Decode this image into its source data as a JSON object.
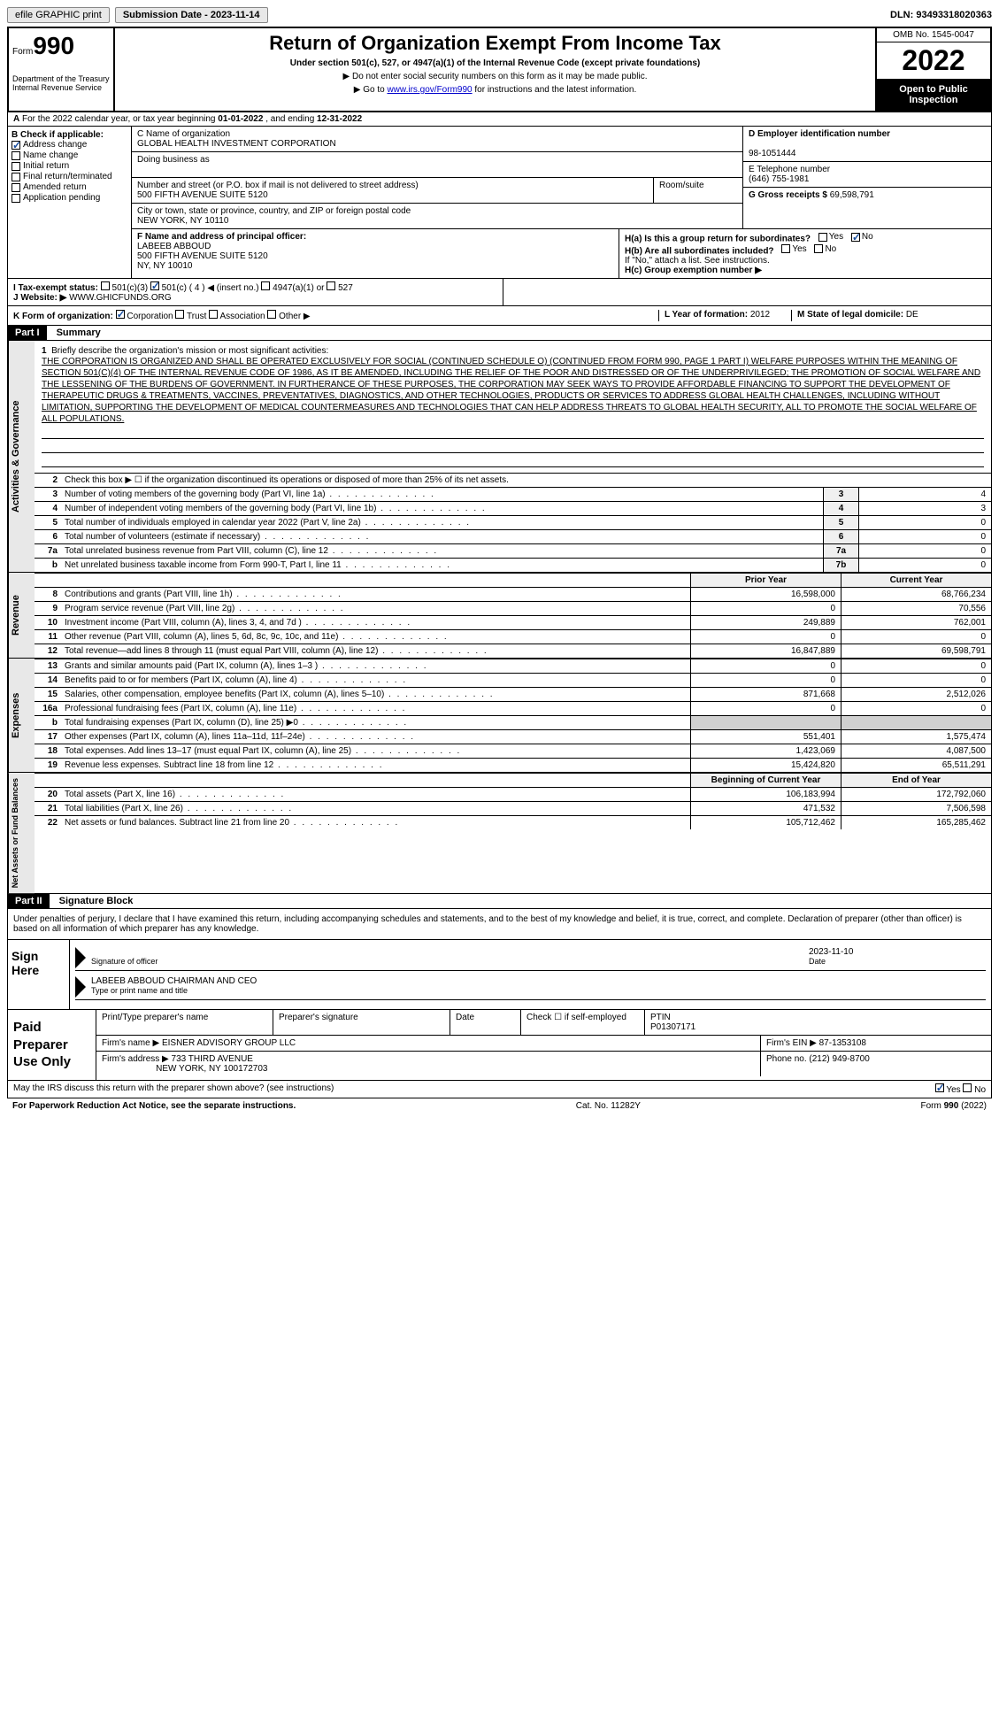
{
  "topbar": {
    "efile": "efile GRAPHIC print",
    "submission_label": "Submission Date - 2023-11-14",
    "dln": "DLN: 93493318020363"
  },
  "header": {
    "form_prefix": "Form",
    "form_num": "990",
    "title": "Return of Organization Exempt From Income Tax",
    "subtitle": "Under section 501(c), 527, or 4947(a)(1) of the Internal Revenue Code (except private foundations)",
    "note1": "▶ Do not enter social security numbers on this form as it may be made public.",
    "note2_pre": "▶ Go to ",
    "note2_link": "www.irs.gov/Form990",
    "note2_post": " for instructions and the latest information.",
    "dept": "Department of the Treasury Internal Revenue Service",
    "omb": "OMB No. 1545-0047",
    "year": "2022",
    "inspect": "Open to Public Inspection"
  },
  "row_a": {
    "a_label": "A",
    "text_pre": "For the 2022 calendar year, or tax year beginning ",
    "begin": "01-01-2022",
    "mid": " , and ending ",
    "end": "12-31-2022"
  },
  "col_b": {
    "header": "B Check if applicable:",
    "items": [
      {
        "label": "Address change",
        "checked": true
      },
      {
        "label": "Name change",
        "checked": false
      },
      {
        "label": "Initial return",
        "checked": false
      },
      {
        "label": "Final return/terminated",
        "checked": false
      },
      {
        "label": "Amended return",
        "checked": false
      },
      {
        "label": "Application pending",
        "checked": false
      }
    ]
  },
  "block_c": {
    "c_label": "C Name of organization",
    "org_name": "GLOBAL HEALTH INVESTMENT CORPORATION",
    "dba_label": "Doing business as",
    "dba": "",
    "street_label": "Number and street (or P.O. box if mail is not delivered to street address)",
    "street": "500 FIFTH AVENUE SUITE 5120",
    "room_label": "Room/suite",
    "room": "",
    "city_label": "City or town, state or province, country, and ZIP or foreign postal code",
    "city": "NEW YORK, NY  10110"
  },
  "block_d": {
    "label": "D Employer identification number",
    "value": "98-1051444"
  },
  "block_e": {
    "label": "E Telephone number",
    "value": "(646) 755-1981"
  },
  "block_g": {
    "label": "G Gross receipts $ ",
    "value": "69,598,791"
  },
  "block_f": {
    "label": "F Name and address of principal officer:",
    "name": "LABEEB ABBOUD",
    "addr1": "500 FIFTH AVENUE SUITE 5120",
    "addr2": "NY, NY  10010"
  },
  "block_h": {
    "ha_label": "H(a)  Is this a group return for subordinates?",
    "ha_yes": false,
    "ha_no": true,
    "hb_label": "H(b)  Are all subordinates included?",
    "hb_yes": false,
    "hb_no": false,
    "hb_note": "If \"No,\" attach a list. See instructions.",
    "hc_label": "H(c)  Group exemption number ▶",
    "hc_val": ""
  },
  "row_i": {
    "label": "I   Tax-exempt status:",
    "c501c3": false,
    "c501c": true,
    "c501c_num": "4",
    "c501c_note": "◀ (insert no.)",
    "c4947": false,
    "c4947_label": "4947(a)(1) or",
    "c527": false,
    "c527_label": "527"
  },
  "row_j": {
    "label": "J   Website: ▶",
    "value": "WWW.GHICFUNDS.ORG"
  },
  "row_k": {
    "label": "K Form of organization:",
    "corp": true,
    "corp_l": "Corporation",
    "trust": false,
    "trust_l": "Trust",
    "assoc": false,
    "assoc_l": "Association",
    "other": false,
    "other_l": "Other ▶",
    "l_label": "L Year of formation: ",
    "l_val": "2012",
    "m_label": "M State of legal domicile: ",
    "m_val": "DE"
  },
  "part1": {
    "part_label": "Part I",
    "title": "Summary",
    "line1_label": "Briefly describe the organization's mission or most significant activities:",
    "mission": "THE CORPORATION IS ORGANIZED AND SHALL BE OPERATED EXCLUSIVELY FOR SOCIAL (CONTINUED SCHEDULE O) (CONTINUED FROM FORM 990, PAGE 1 PART I) WELFARE PURPOSES WITHIN THE MEANING OF SECTION 501(C)(4) OF THE INTERNAL REVENUE CODE OF 1986, AS IT BE AMENDED, INCLUDING THE RELIEF OF THE POOR AND DISTRESSED OR OF THE UNDERPRIVILEGED; THE PROMOTION OF SOCIAL WELFARE AND THE LESSENING OF THE BURDENS OF GOVERNMENT. IN FURTHERANCE OF THESE PURPOSES, THE CORPORATION MAY SEEK WAYS TO PROVIDE AFFORDABLE FINANCING TO SUPPORT THE DEVELOPMENT OF THERAPEUTIC DRUGS & TREATMENTS, VACCINES, PREVENTATIVES, DIAGNOSTICS, AND OTHER TECHNOLOGIES, PRODUCTS OR SERVICES TO ADDRESS GLOBAL HEALTH CHALLENGES, INCLUDING WITHOUT LIMITATION, SUPPORTING THE DEVELOPMENT OF MEDICAL COUNTERMEASURES AND TECHNOLOGIES THAT CAN HELP ADDRESS THREATS TO GLOBAL HEALTH SECURITY, ALL TO PROMOTE THE SOCIAL WELFARE OF ALL POPULATIONS.",
    "line2": "Check this box ▶ ☐ if the organization discontinued its operations or disposed of more than 25% of its net assets.",
    "rows_boxed": [
      {
        "n": "3",
        "label": "Number of voting members of the governing body (Part VI, line 1a)",
        "box": "3",
        "val": "4"
      },
      {
        "n": "4",
        "label": "Number of independent voting members of the governing body (Part VI, line 1b)",
        "box": "4",
        "val": "3"
      },
      {
        "n": "5",
        "label": "Total number of individuals employed in calendar year 2022 (Part V, line 2a)",
        "box": "5",
        "val": "0"
      },
      {
        "n": "6",
        "label": "Total number of volunteers (estimate if necessary)",
        "box": "6",
        "val": "0"
      },
      {
        "n": "7a",
        "label": "Total unrelated business revenue from Part VIII, column (C), line 12",
        "box": "7a",
        "val": "0"
      },
      {
        "n": "b",
        "label": "Net unrelated business taxable income from Form 990-T, Part I, line 11",
        "box": "7b",
        "val": "0"
      }
    ],
    "col_prior": "Prior Year",
    "col_current": "Current Year"
  },
  "revenue": {
    "strip": "Revenue",
    "rows": [
      {
        "n": "8",
        "label": "Contributions and grants (Part VIII, line 1h)",
        "prior": "16,598,000",
        "curr": "68,766,234"
      },
      {
        "n": "9",
        "label": "Program service revenue (Part VIII, line 2g)",
        "prior": "0",
        "curr": "70,556"
      },
      {
        "n": "10",
        "label": "Investment income (Part VIII, column (A), lines 3, 4, and 7d )",
        "prior": "249,889",
        "curr": "762,001"
      },
      {
        "n": "11",
        "label": "Other revenue (Part VIII, column (A), lines 5, 6d, 8c, 9c, 10c, and 11e)",
        "prior": "0",
        "curr": "0"
      },
      {
        "n": "12",
        "label": "Total revenue—add lines 8 through 11 (must equal Part VIII, column (A), line 12)",
        "prior": "16,847,889",
        "curr": "69,598,791"
      }
    ]
  },
  "expenses": {
    "strip": "Expenses",
    "rows": [
      {
        "n": "13",
        "label": "Grants and similar amounts paid (Part IX, column (A), lines 1–3 )",
        "prior": "0",
        "curr": "0"
      },
      {
        "n": "14",
        "label": "Benefits paid to or for members (Part IX, column (A), line 4)",
        "prior": "0",
        "curr": "0"
      },
      {
        "n": "15",
        "label": "Salaries, other compensation, employee benefits (Part IX, column (A), lines 5–10)",
        "prior": "871,668",
        "curr": "2,512,026"
      },
      {
        "n": "16a",
        "label": "Professional fundraising fees (Part IX, column (A), line 11e)",
        "prior": "0",
        "curr": "0"
      },
      {
        "n": "b",
        "label": "Total fundraising expenses (Part IX, column (D), line 25) ▶0",
        "prior": "",
        "curr": "",
        "shaded": true
      },
      {
        "n": "17",
        "label": "Other expenses (Part IX, column (A), lines 11a–11d, 11f–24e)",
        "prior": "551,401",
        "curr": "1,575,474"
      },
      {
        "n": "18",
        "label": "Total expenses. Add lines 13–17 (must equal Part IX, column (A), line 25)",
        "prior": "1,423,069",
        "curr": "4,087,500"
      },
      {
        "n": "19",
        "label": "Revenue less expenses. Subtract line 18 from line 12",
        "prior": "15,424,820",
        "curr": "65,511,291"
      }
    ]
  },
  "netassets": {
    "strip": "Net Assets or Fund Balances",
    "col_begin": "Beginning of Current Year",
    "col_end": "End of Year",
    "rows": [
      {
        "n": "20",
        "label": "Total assets (Part X, line 16)",
        "prior": "106,183,994",
        "curr": "172,792,060"
      },
      {
        "n": "21",
        "label": "Total liabilities (Part X, line 26)",
        "prior": "471,532",
        "curr": "7,506,598"
      },
      {
        "n": "22",
        "label": "Net assets or fund balances. Subtract line 21 from line 20",
        "prior": "105,712,462",
        "curr": "165,285,462"
      }
    ]
  },
  "part2": {
    "part_label": "Part II",
    "title": "Signature Block",
    "declaration": "Under penalties of perjury, I declare that I have examined this return, including accompanying schedules and statements, and to the best of my knowledge and belief, it is true, correct, and complete. Declaration of preparer (other than officer) is based on all information of which preparer has any knowledge."
  },
  "sign": {
    "left": "Sign Here",
    "sig_of": "Signature of officer",
    "date_label": "Date",
    "date": "2023-11-10",
    "name": "LABEEB ABBOUD CHAIRMAN AND CEO",
    "name_label": "Type or print name and title"
  },
  "paid": {
    "left": "Paid Preparer Use Only",
    "r1": {
      "pname_label": "Print/Type preparer's name",
      "pname": "",
      "psig_label": "Preparer's signature",
      "psig": "",
      "pdate_label": "Date",
      "pdate": "",
      "check_label": "Check ☐ if self-employed",
      "ptin_label": "PTIN",
      "ptin": "P01307171"
    },
    "r2": {
      "fname_label": "Firm's name    ▶",
      "fname": "EISNER ADVISORY GROUP LLC",
      "fein_label": "Firm's EIN ▶",
      "fein": "87-1353108"
    },
    "r3": {
      "faddr_label": "Firm's address ▶",
      "faddr1": "733 THIRD AVENUE",
      "faddr2": "NEW YORK, NY  100172703",
      "fphone_label": "Phone no.",
      "fphone": "(212) 949-8700"
    }
  },
  "bottom": {
    "discuss": "May the IRS discuss this return with the preparer shown above? (see instructions)",
    "yes": true,
    "no": false,
    "paperwork": "For Paperwork Reduction Act Notice, see the separate instructions.",
    "cat": "Cat. No. 11282Y",
    "formref": "Form 990 (2022)"
  },
  "activities_strip": "Activities & Governance"
}
